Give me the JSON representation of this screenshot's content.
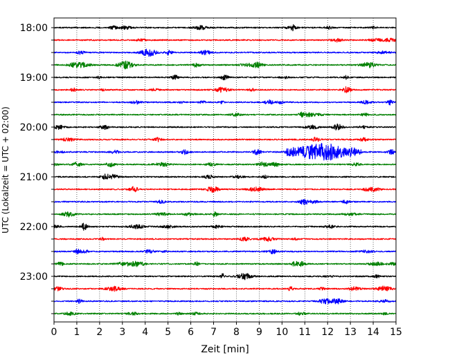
{
  "chart_data": {
    "type": "line",
    "title": "",
    "xlabel": "Zeit  [min]",
    "ylabel": "UTC (Lokalzeit = UTC + 02:00)",
    "xlim": [
      0,
      15
    ],
    "x_ticks": [
      "0",
      "1",
      "2",
      "3",
      "4",
      "5",
      "6",
      "7",
      "8",
      "9",
      "10",
      "11",
      "12",
      "13",
      "14",
      "15"
    ],
    "y_tick_labels": [
      "18:00",
      "19:00",
      "20:00",
      "21:00",
      "22:00",
      "23:00"
    ],
    "grid": "vertical dotted",
    "trace_colors": [
      "#000000",
      "#ff0000",
      "#0000ff",
      "#008000"
    ],
    "traces": [
      {
        "start": "18:00",
        "color": "#000000",
        "events": []
      },
      {
        "start": "18:15",
        "color": "#ff0000",
        "events": []
      },
      {
        "start": "18:30",
        "color": "#0000ff",
        "events": []
      },
      {
        "start": "18:45",
        "color": "#008000",
        "events": []
      },
      {
        "start": "19:00",
        "color": "#000000",
        "events": []
      },
      {
        "start": "19:15",
        "color": "#ff0000",
        "events": []
      },
      {
        "start": "19:30",
        "color": "#0000ff",
        "events": []
      },
      {
        "start": "19:45",
        "color": "#008000",
        "events": []
      },
      {
        "start": "20:00",
        "color": "#000000",
        "events": []
      },
      {
        "start": "20:15",
        "color": "#ff0000",
        "events": []
      },
      {
        "start": "20:30",
        "color": "#0000ff",
        "events": [
          {
            "start_min": 10.2,
            "end_min": 13.5,
            "peak_min": 11.8
          }
        ]
      },
      {
        "start": "20:45",
        "color": "#008000",
        "events": []
      },
      {
        "start": "21:00",
        "color": "#000000",
        "events": []
      },
      {
        "start": "21:15",
        "color": "#ff0000",
        "events": []
      },
      {
        "start": "21:30",
        "color": "#0000ff",
        "events": []
      },
      {
        "start": "21:45",
        "color": "#008000",
        "events": []
      },
      {
        "start": "22:00",
        "color": "#000000",
        "events": []
      },
      {
        "start": "22:15",
        "color": "#ff0000",
        "events": []
      },
      {
        "start": "22:30",
        "color": "#0000ff",
        "events": []
      },
      {
        "start": "22:45",
        "color": "#008000",
        "events": []
      },
      {
        "start": "23:00",
        "color": "#000000",
        "events": []
      },
      {
        "start": "23:15",
        "color": "#ff0000",
        "events": []
      },
      {
        "start": "23:30",
        "color": "#0000ff",
        "events": []
      },
      {
        "start": "23:45",
        "color": "#008000",
        "events": []
      }
    ]
  }
}
